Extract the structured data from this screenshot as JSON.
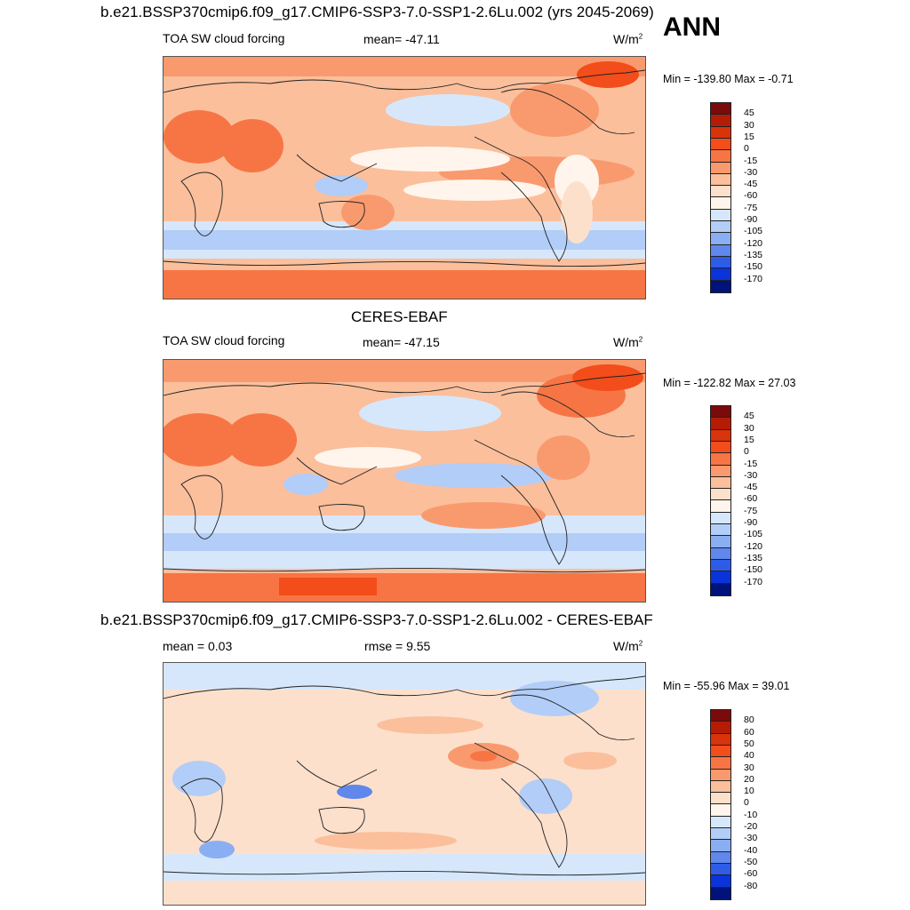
{
  "figure": {
    "season": "ANN",
    "title_top": "b.e21.BSSP370cmip6.f09_g17.CMIP6-SSP3-7.0-SSP1-2.6Lu.002 (yrs 2045-2069)",
    "title_middle": "CERES-EBAF",
    "title_bottom": "b.e21.BSSP370cmip6.f09_g17.CMIP6-SSP3-7.0-SSP1-2.6Lu.002 - CERES-EBAF"
  },
  "panels": [
    {
      "variable": "TOA SW cloud forcing",
      "stat_text": "mean= -47.11",
      "units": "W/m",
      "units_exp": "2",
      "minmax": "Min = -139.80 Max =  -0.71",
      "mean": -47.11,
      "min": -139.8,
      "max": -0.71
    },
    {
      "variable": "TOA SW cloud forcing",
      "stat_text": "mean= -47.15",
      "units": "W/m",
      "units_exp": "2",
      "minmax": "Min = -122.82 Max =  27.03",
      "mean": -47.15,
      "min": -122.82,
      "max": 27.03
    },
    {
      "variable": "mean =   0.03",
      "stat_text": "rmse =   9.55",
      "units": "W/m",
      "units_exp": "2",
      "minmax": "Min = -55.96 Max =  39.01",
      "mean": 0.03,
      "rmse": 9.55,
      "min": -55.96,
      "max": 39.01
    }
  ],
  "colorbars": {
    "field": {
      "labels": [
        "45",
        "30",
        "15",
        "0",
        "-15",
        "-30",
        "-45",
        "-60",
        "-75",
        "-90",
        "-105",
        "-120",
        "-135",
        "-150",
        "-170"
      ],
      "colors": [
        "#7b0a0a",
        "#b51c05",
        "#d9330b",
        "#f24d1a",
        "#f77545",
        "#f99a6e",
        "#fbbf9c",
        "#fde0cc",
        "#fff5ec",
        "#d6e7fb",
        "#b2cdf7",
        "#8aaef2",
        "#5f87ec",
        "#2e5ce7",
        "#0a33d9",
        "#00137a"
      ]
    },
    "diff": {
      "labels": [
        "80",
        "60",
        "50",
        "40",
        "30",
        "20",
        "10",
        "0",
        "-10",
        "-20",
        "-30",
        "-40",
        "-50",
        "-60",
        "-80"
      ],
      "colors": [
        "#7b0a0a",
        "#b51c05",
        "#d9330b",
        "#f24d1a",
        "#f77545",
        "#f99a6e",
        "#fbbf9c",
        "#fde0cc",
        "#fff5ec",
        "#d6e7fb",
        "#b2cdf7",
        "#8aaef2",
        "#5f87ec",
        "#2e5ce7",
        "#0a33d9",
        "#00137a"
      ]
    }
  }
}
